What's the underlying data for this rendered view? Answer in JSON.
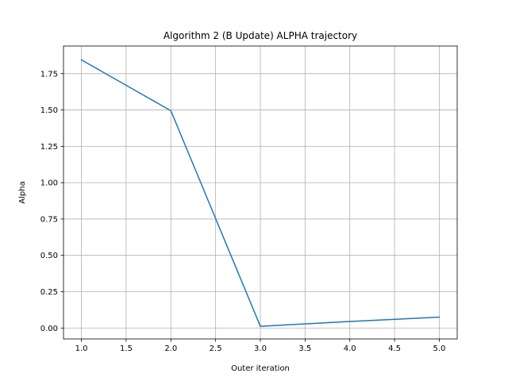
{
  "chart_data": {
    "type": "line",
    "title": "Algorithm 2 (B Update) ALPHA trajectory",
    "xlabel": "Outer iteration",
    "ylabel": "Alpha",
    "xlim": [
      0.8,
      5.2
    ],
    "ylim": [
      -0.075,
      1.94
    ],
    "grid": true,
    "x_ticks": [
      1.0,
      1.5,
      2.0,
      2.5,
      3.0,
      3.5,
      4.0,
      4.5,
      5.0
    ],
    "x_tick_labels": [
      "1.0",
      "1.5",
      "2.0",
      "2.5",
      "3.0",
      "3.5",
      "4.0",
      "4.5",
      "5.0"
    ],
    "y_ticks": [
      0.0,
      0.25,
      0.5,
      0.75,
      1.0,
      1.25,
      1.5,
      1.75
    ],
    "y_tick_labels": [
      "0.00",
      "0.25",
      "0.50",
      "0.75",
      "1.00",
      "1.25",
      "1.50",
      "1.75"
    ],
    "series": [
      {
        "color": "#1f77b4",
        "x": [
          1,
          2,
          3,
          4,
          5
        ],
        "y": [
          1.845,
          1.495,
          0.012,
          0.045,
          0.075
        ]
      }
    ]
  }
}
